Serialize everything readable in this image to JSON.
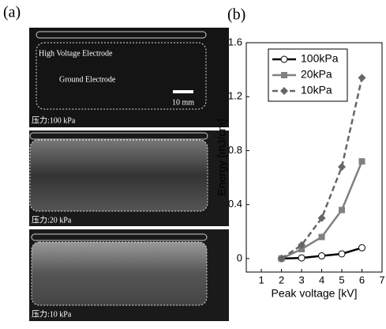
{
  "panel_a": {
    "label": "(a)",
    "images": [
      {
        "annotations": [
          "High Voltage Electrode",
          "Ground Electrode"
        ],
        "scale_bar": "10 mm",
        "caption": "压力:100 kPa"
      },
      {
        "caption": "压力:20 kPa"
      },
      {
        "caption": "压力:10 kPa"
      }
    ]
  },
  "panel_b_label": "(b)",
  "chart_data": {
    "type": "line",
    "xlabel": "Peak voltage [kV]",
    "ylabel": "Energy [mJ/cm]",
    "x": [
      2,
      3,
      4,
      5,
      6
    ],
    "series": [
      {
        "name": "100kPa",
        "color": "#000000",
        "marker": "circle",
        "dashed": false,
        "values": [
          0,
          0.005,
          0.02,
          0.035,
          0.08
        ]
      },
      {
        "name": "20kPa",
        "color": "#808080",
        "marker": "square",
        "dashed": false,
        "values": [
          0,
          0.07,
          0.16,
          0.36,
          0.72
        ]
      },
      {
        "name": "10kPa",
        "color": "#666666",
        "marker": "diamond",
        "dashed": true,
        "values": [
          0,
          0.1,
          0.3,
          0.68,
          1.34
        ]
      }
    ],
    "xlim": [
      0.25,
      7
    ],
    "xticks": [
      1,
      2,
      3,
      4,
      5,
      6,
      7
    ],
    "ylim": [
      -0.1,
      1.6
    ],
    "yticks": [
      0,
      0.4,
      0.8,
      1.2,
      1.6
    ],
    "legend": "upper left"
  }
}
